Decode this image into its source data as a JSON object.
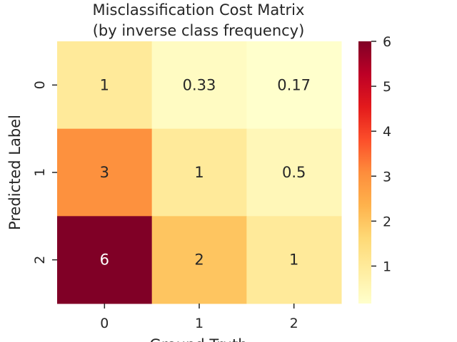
{
  "chart_data": {
    "type": "heatmap",
    "title_lines": [
      "Misclassification Cost Matrix",
      "(by inverse class frequency)"
    ],
    "xlabel": "Ground Truth",
    "ylabel": "Predicted Label",
    "x_categories": [
      "0",
      "1",
      "2"
    ],
    "y_categories": [
      "0",
      "1",
      "2"
    ],
    "values": [
      [
        1,
        0.3333,
        0.1667
      ],
      [
        3,
        1,
        0.5
      ],
      [
        6,
        2,
        1
      ]
    ],
    "annotations": [
      [
        "1",
        "0.33",
        "0.17"
      ],
      [
        "3",
        "1",
        "0.5"
      ],
      [
        "6",
        "2",
        "1"
      ]
    ],
    "colormap": "YlOrRd",
    "colorbar": {
      "vmin": 0.1667,
      "vmax": 6,
      "ticks": [
        1,
        2,
        3,
        4,
        5,
        6
      ],
      "tick_labels": [
        "1",
        "2",
        "3",
        "4",
        "5",
        "6"
      ]
    },
    "grid": false,
    "text_color_dark": "#262626",
    "text_color_light": "#ffffff"
  }
}
